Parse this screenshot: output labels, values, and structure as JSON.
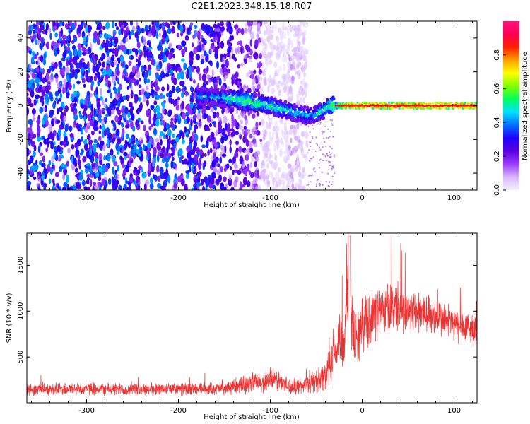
{
  "title": "C2E1.2023.348.15.18.R07",
  "chart_data": [
    {
      "type": "heatmap",
      "xlabel": "Height of straight line (km)",
      "ylabel": "Frequency (Hz)",
      "xlim": [
        -365,
        125
      ],
      "ylim": [
        -50,
        50
      ],
      "xticks": [
        -300,
        -200,
        -100,
        0,
        100
      ],
      "yticks": [
        -40,
        -20,
        0,
        20,
        40
      ],
      "colorbar": {
        "label": "Normalized spectral amplitude",
        "range": [
          0,
          1
        ],
        "ticks": [
          0.0,
          0.2,
          0.4,
          0.6,
          0.8
        ],
        "colormap": [
          "#f5f0ff",
          "#d8b8ff",
          "#9c3cff",
          "#5a00e0",
          "#2000ff",
          "#0070ff",
          "#00e0ff",
          "#00ff60",
          "#80ff00",
          "#ffff00",
          "#ffa000",
          "#ff2000",
          "#ff0050",
          "#ff1080"
        ]
      },
      "noise_band": {
        "x_from": -365,
        "x_to": -60,
        "level": 0.35
      },
      "ridge": [
        {
          "x": -180,
          "y": 6,
          "level": 0.45
        },
        {
          "x": -160,
          "y": 5,
          "level": 0.4
        },
        {
          "x": -140,
          "y": 4,
          "level": 0.55
        },
        {
          "x": -120,
          "y": 2,
          "level": 0.6
        },
        {
          "x": -100,
          "y": 0,
          "level": 0.5
        },
        {
          "x": -80,
          "y": -3,
          "level": 0.5
        },
        {
          "x": -60,
          "y": -6,
          "level": 0.45
        },
        {
          "x": -45,
          "y": -4,
          "level": 0.5
        },
        {
          "x": -35,
          "y": 0,
          "level": 0.55
        },
        {
          "x": -20,
          "y": 0,
          "level": 0.85
        },
        {
          "x": 0,
          "y": 0,
          "level": 0.9
        },
        {
          "x": 50,
          "y": 0,
          "level": 0.9
        },
        {
          "x": 100,
          "y": 0,
          "level": 0.9
        },
        {
          "x": 125,
          "y": 0,
          "level": 0.9
        }
      ]
    },
    {
      "type": "line",
      "xlabel": "Height of straight line (km)",
      "ylabel": "SNR (10 * v/v)",
      "xlim": [
        -365,
        125
      ],
      "ylim": [
        0,
        1850
      ],
      "xticks": [
        -300,
        -200,
        -100,
        0,
        100
      ],
      "yticks": [
        500,
        1000,
        1500
      ],
      "color": "#ee3333",
      "x": [
        -365,
        -340,
        -320,
        -300,
        -280,
        -260,
        -240,
        -220,
        -200,
        -180,
        -160,
        -140,
        -130,
        -120,
        -110,
        -100,
        -90,
        -80,
        -70,
        -60,
        -50,
        -40,
        -35,
        -30,
        -25,
        -20,
        -16,
        -10,
        -5,
        0,
        10,
        20,
        30,
        40,
        50,
        60,
        70,
        80,
        90,
        100,
        110,
        125
      ],
      "y": [
        140,
        150,
        150,
        155,
        150,
        145,
        150,
        150,
        150,
        150,
        155,
        165,
        200,
        230,
        210,
        260,
        230,
        180,
        180,
        200,
        240,
        300,
        380,
        500,
        700,
        650,
        1300,
        800,
        700,
        850,
        950,
        1000,
        1050,
        1050,
        1000,
        1000,
        980,
        950,
        900,
        850,
        820,
        800
      ],
      "amplitude": [
        80,
        80,
        80,
        80,
        80,
        80,
        80,
        80,
        80,
        80,
        80,
        90,
        120,
        130,
        130,
        150,
        140,
        110,
        100,
        110,
        150,
        200,
        250,
        300,
        400,
        400,
        500,
        400,
        350,
        350,
        350,
        330,
        330,
        320,
        300,
        280,
        260,
        250,
        240,
        230,
        220,
        200
      ]
    }
  ]
}
